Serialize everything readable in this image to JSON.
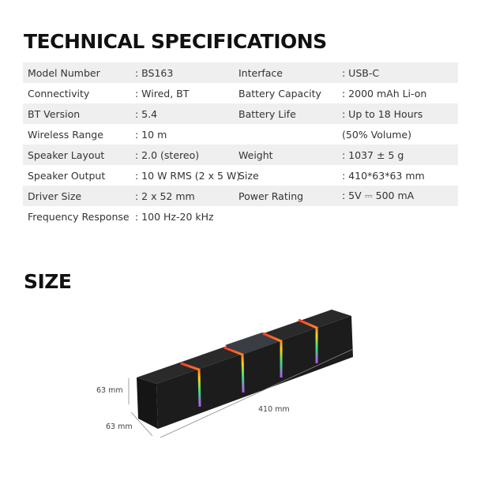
{
  "specs_title": "TECHNICAL SPECIFICATIONS",
  "size_title": "SIZE",
  "rows": [
    {
      "l1": "Model Number",
      "v1": ": BS163",
      "l2": "Interface",
      "v2": ": USB-C"
    },
    {
      "l1": "Connectivity",
      "v1": ": Wired, BT",
      "l2": "Battery Capacity",
      "v2": ": 2000 mAh Li-on"
    },
    {
      "l1": "BT Version",
      "v1": ": 5.4",
      "l2": "Battery Life",
      "v2": ": Up to 18 Hours"
    },
    {
      "l1": "Wireless Range",
      "v1": ": 10 m",
      "l2": "",
      "v2": " (50% Volume)"
    },
    {
      "l1": "Speaker Layout",
      "v1": ": 2.0 (stereo)",
      "l2": "Weight",
      "v2": ": 1037 ± 5 g"
    },
    {
      "l1": "Speaker Output",
      "v1": ": 10 W RMS (2 x 5 W)",
      "l2": "Size",
      "v2": ": 410*63*63 mm"
    },
    {
      "l1": "Driver Size",
      "v1": ": 2 x 52 mm",
      "l2": "Power Rating",
      "v2": ": 5V ⎓ 500 mA"
    },
    {
      "l1": "Frequency Response",
      "v1": ": 100 Hz-20 kHz",
      "l2": "",
      "v2": ""
    }
  ],
  "dimensions": {
    "height": "63 mm",
    "depth": "63 mm",
    "length": "410 mm"
  }
}
